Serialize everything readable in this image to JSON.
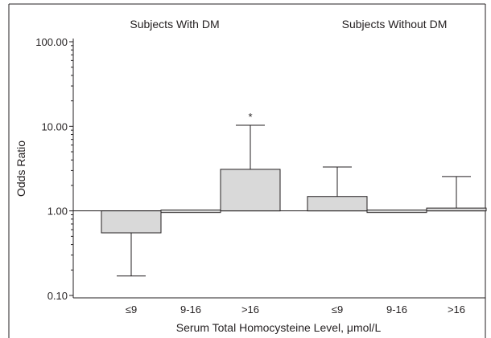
{
  "chart_data": {
    "type": "bar",
    "title": "",
    "xlabel": "Serum Total Homocysteine Level, μmol/L",
    "ylabel": "Odds Ratio",
    "yscale": "log",
    "ylim": [
      0.1,
      100
    ],
    "baseline": 1.0,
    "yticks": [
      "0.10",
      "1.00",
      "10.00",
      "100.00"
    ],
    "grid": false,
    "groups": [
      {
        "label": "Subjects With DM",
        "categories": [
          "≤9",
          "9-16",
          ">16"
        ],
        "values": [
          0.55,
          1.0,
          3.1
        ],
        "error_bounds": [
          0.17,
          null,
          10.3
        ],
        "annotations": [
          "",
          "",
          "*"
        ]
      },
      {
        "label": "Subjects Without DM",
        "categories": [
          "≤9",
          "9-16",
          ">16"
        ],
        "values": [
          1.48,
          1.0,
          1.08
        ],
        "error_bounds": [
          3.3,
          null,
          2.55
        ],
        "annotations": [
          "",
          "",
          ""
        ]
      }
    ],
    "colors": {
      "bar_fill": "#d9d9d9",
      "stroke": "#231f20"
    }
  }
}
